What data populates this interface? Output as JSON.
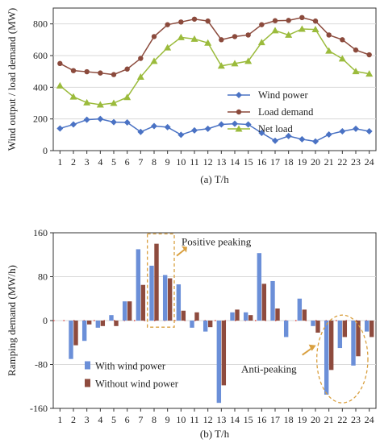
{
  "chart_data": [
    {
      "type": "line",
      "panel_caption": "(a) T/h",
      "ylabel": "Wind output / load demand (MW)",
      "x": [
        1,
        2,
        3,
        4,
        5,
        6,
        7,
        8,
        9,
        10,
        11,
        12,
        13,
        14,
        15,
        16,
        17,
        18,
        19,
        20,
        21,
        22,
        23,
        24
      ],
      "ylim": [
        0,
        900
      ],
      "yticks": [
        0,
        200,
        400,
        600,
        800
      ],
      "grid": true,
      "legend_position": "right-center",
      "series": [
        {
          "name": "Wind power",
          "color": "#4a72c4",
          "marker": "diamond",
          "values": [
            140,
            165,
            195,
            200,
            180,
            178,
            118,
            155,
            148,
            100,
            128,
            138,
            165,
            170,
            165,
            112,
            62,
            92,
            72,
            58,
            102,
            122,
            138,
            122
          ]
        },
        {
          "name": "Load demand",
          "color": "#8b4a3c",
          "marker": "circle",
          "values": [
            550,
            505,
            498,
            490,
            480,
            515,
            582,
            720,
            795,
            812,
            830,
            818,
            700,
            720,
            730,
            795,
            820,
            822,
            840,
            818,
            730,
            700,
            635,
            605
          ]
        },
        {
          "name": "Net load",
          "color": "#9bbb3c",
          "marker": "triangle",
          "values": [
            410,
            340,
            303,
            290,
            300,
            337,
            465,
            565,
            650,
            715,
            705,
            680,
            535,
            550,
            565,
            683,
            758,
            730,
            768,
            765,
            630,
            580,
            500,
            485
          ]
        }
      ]
    },
    {
      "type": "bar",
      "panel_caption": "(b) T/h",
      "ylabel": "Ramping demand (MW/h)",
      "categories": [
        1,
        2,
        3,
        4,
        5,
        6,
        7,
        8,
        9,
        10,
        11,
        12,
        13,
        14,
        15,
        16,
        17,
        18,
        19,
        20,
        21,
        22,
        23,
        24
      ],
      "ylim": [
        -160,
        160
      ],
      "yticks": [
        -160,
        -80,
        0,
        80,
        160
      ],
      "grid": true,
      "legend_position": "bottom-left",
      "series": [
        {
          "name": "With wind power",
          "color": "#6b8fd8",
          "values": [
            0,
            -70,
            -37,
            -13,
            10,
            35,
            130,
            100,
            83,
            66,
            -13,
            -20,
            -150,
            15,
            15,
            123,
            72,
            -30,
            40,
            -10,
            -135,
            -50,
            -82,
            -20
          ]
        },
        {
          "name": "Without wind power",
          "color": "#8e4b3e",
          "values": [
            0,
            -45,
            -7,
            -10,
            -10,
            35,
            65,
            140,
            77,
            18,
            15,
            -12,
            -118,
            20,
            10,
            67,
            22,
            0,
            20,
            -22,
            -90,
            -30,
            -65,
            -30
          ]
        }
      ],
      "annotations": [
        {
          "text": "Positive peaking",
          "around_categories": [
            8,
            9
          ]
        },
        {
          "text": "Anti-peaking",
          "around_categories": [
            21,
            23
          ]
        }
      ]
    }
  ],
  "colors": {
    "axis": "#333333",
    "grid": "#d9d9d9",
    "annotation_box": "#d9a040",
    "annotation_arrow": "#d9a040",
    "baseline_dots": "#e05050"
  }
}
